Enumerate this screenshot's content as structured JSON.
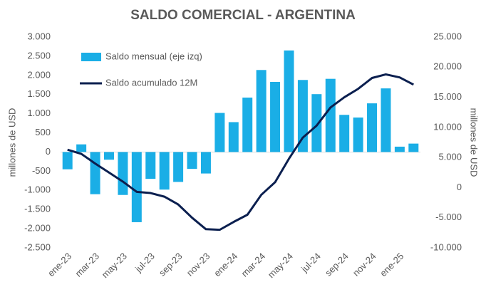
{
  "chart_data": {
    "type": "bar",
    "title": "SALDO COMERCIAL - ARGENTINA",
    "y_label": "millones de USD",
    "y2_label": "millones de USD",
    "categories": [
      "ene-23",
      null,
      "mar-23",
      null,
      "may-23",
      null,
      "jul-23",
      null,
      "sep-23",
      null,
      "nov-23",
      null,
      "ene-24",
      null,
      "mar-24",
      null,
      "may-24",
      null,
      "jul-24",
      null,
      "sep-24",
      null,
      "nov-24",
      null,
      "ene-25",
      null
    ],
    "series": [
      {
        "name": "Saldo mensual (eje izq)",
        "type": "bar",
        "color": "#1aaee6",
        "values": [
          -450,
          200,
          -1100,
          -200,
          -1120,
          -1830,
          -700,
          -980,
          -780,
          -440,
          -560,
          1020,
          780,
          1420,
          2140,
          1830,
          2650,
          1880,
          1510,
          1910,
          970,
          900,
          1270,
          1660,
          140,
          220
        ]
      },
      {
        "name": "Saldo acumulado 12M",
        "type": "line",
        "axis": "y2",
        "color": "#0b1f4f",
        "values": [
          6300,
          5600,
          4000,
          2500,
          1000,
          -700,
          -900,
          -1500,
          -2800,
          -5000,
          -6900,
          -7000,
          -5700,
          -4500,
          -1200,
          900,
          4800,
          8300,
          10300,
          13300,
          15000,
          16400,
          18200,
          18800,
          18300,
          17100
        ]
      }
    ],
    "ylim": [
      -2500,
      3000
    ],
    "yticks": [
      {
        "value": -2500,
        "label": "-2.500"
      },
      {
        "value": -2000,
        "label": "-2.000"
      },
      {
        "value": -1500,
        "label": "-1.500"
      },
      {
        "value": -1000,
        "label": "-1.000"
      },
      -500,
      0,
      500,
      {
        "value": 1000,
        "label": "1.000"
      },
      {
        "value": 1500,
        "label": "1.500"
      },
      {
        "value": 2000,
        "label": "2.000"
      },
      {
        "value": 2500,
        "label": "2.500"
      },
      {
        "value": 3000,
        "label": "3.000"
      }
    ],
    "y2lim": [
      -10000,
      25000
    ],
    "y2ticks": [
      {
        "value": -10000,
        "label": "-10.000"
      },
      {
        "value": -5000,
        "label": "-5.000"
      },
      0,
      {
        "value": 5000,
        "label": "5.000"
      },
      {
        "value": 10000,
        "label": "10.000"
      },
      {
        "value": 15000,
        "label": "15.000"
      },
      {
        "value": 20000,
        "label": "20.000"
      },
      {
        "value": 25000,
        "label": "25.000"
      }
    ],
    "legend": "upper left"
  }
}
